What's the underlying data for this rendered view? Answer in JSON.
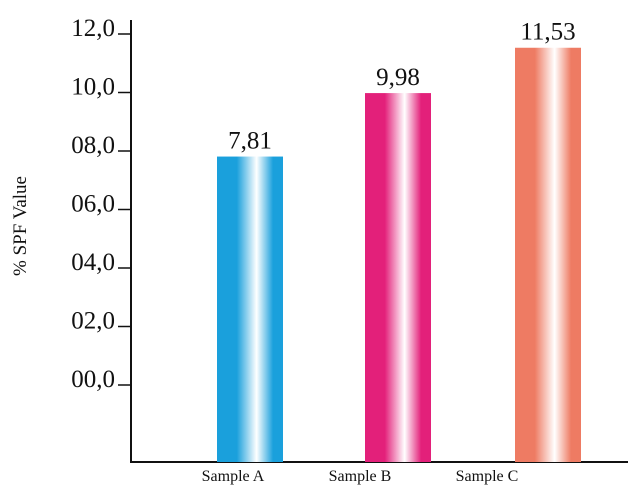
{
  "chart_data": {
    "type": "bar",
    "ylabel": "% SPF Value",
    "categories": [
      "Sample A",
      "Sample B",
      "Sample C"
    ],
    "values": [
      7.81,
      9.98,
      11.53
    ],
    "value_labels": [
      "7,81",
      "9,98",
      "11,53"
    ],
    "y_ticks": [
      0,
      2,
      4,
      6,
      8,
      10,
      12
    ],
    "y_tick_labels": [
      "00,0",
      "02,0",
      "04,0",
      "06,0",
      "08,0",
      "10,0",
      "12,0"
    ],
    "y_baseline_value": -2,
    "ylim": [
      -2,
      12
    ],
    "grid": false,
    "bar_colors": [
      "#1aa0dc",
      "#e3207a",
      "#ee7b63"
    ]
  }
}
